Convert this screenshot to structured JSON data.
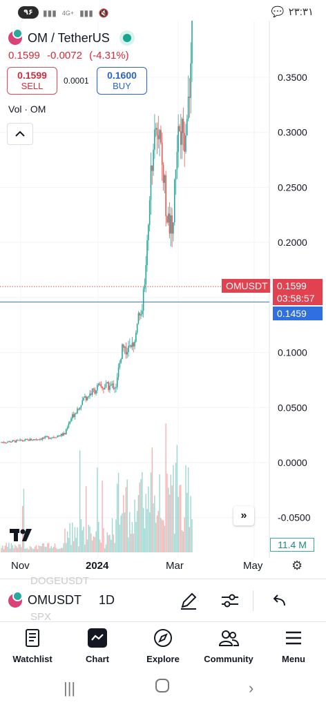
{
  "status_bar": {
    "badge": "۹۶",
    "network": "4G+",
    "time": "۲۳:۳۱"
  },
  "header": {
    "symbol_title": "OM / TetherUS",
    "price": "0.1599",
    "change": "-0.0072",
    "change_pct": "(-4.31%)",
    "sell_price": "0.1599",
    "sell_label": "SELL",
    "spread": "0.0001",
    "buy_price": "0.1600",
    "buy_label": "BUY",
    "volume_label": "Vol · OM"
  },
  "colors": {
    "up": "#26a69a",
    "down": "#ef5350",
    "price_tag": "#e2414f",
    "blue_line": "#2f6fe0"
  },
  "chart_data": {
    "type": "candlestick",
    "symbol": "OMUSDT",
    "interval": "1D",
    "y_ticks": [
      "0.3500",
      "0.3000",
      "0.2500",
      "0.2000",
      "0.1500",
      "0.1000",
      "0.0500",
      "0.0000",
      "-0.0500"
    ],
    "ylim": [
      -0.06,
      0.395
    ],
    "x_ticks": [
      "Nov",
      "2024",
      "Mar",
      "May"
    ],
    "last_price": 0.1599,
    "last_price_label": "0.1599",
    "countdown": "03:58:57",
    "symbol_tag": "OMUSDT",
    "line_price": 0.1459,
    "line_price_label": "0.1459",
    "volume_label": "11.4 M",
    "close_path": [
      [
        "2023-10-20",
        0.0185
      ],
      [
        "2023-11-01",
        0.0195
      ],
      [
        "2023-11-15",
        0.021
      ],
      [
        "2023-12-01",
        0.0235
      ],
      [
        "2023-12-10",
        0.026
      ],
      [
        "2023-12-15",
        0.04
      ],
      [
        "2023-12-25",
        0.058
      ],
      [
        "2024-01-05",
        0.068
      ],
      [
        "2024-01-20",
        0.07
      ],
      [
        "2024-01-25",
        0.105
      ],
      [
        "2024-02-01",
        0.1
      ],
      [
        "2024-02-08",
        0.135
      ],
      [
        "2024-02-12",
        0.155
      ],
      [
        "2024-02-16",
        0.235
      ],
      [
        "2024-02-20",
        0.32
      ],
      [
        "2024-02-25",
        0.29
      ],
      [
        "2024-03-01",
        0.22
      ],
      [
        "2024-03-05",
        0.215
      ],
      [
        "2024-03-10",
        0.29
      ],
      [
        "2024-03-15",
        0.3
      ],
      [
        "2024-03-18",
        0.33
      ],
      [
        "2024-03-21",
        0.395
      ]
    ]
  },
  "toolbar": {
    "symbol": "OMUSDT",
    "interval": "1D",
    "ghost_above": "DOGEUSDT",
    "ghost_below": "SPX"
  },
  "nav": {
    "watchlist": "Watchlist",
    "chart": "Chart",
    "explore": "Explore",
    "community": "Community",
    "menu": "Menu"
  }
}
